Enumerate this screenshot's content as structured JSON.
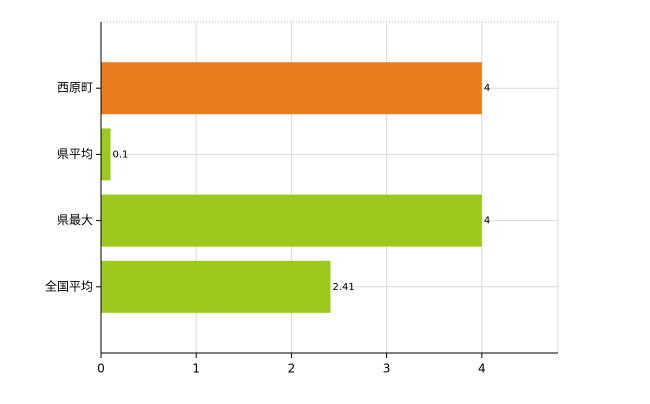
{
  "chart_data": {
    "type": "barh",
    "categories": [
      "西原町",
      "県平均",
      "県最大",
      "全国平均"
    ],
    "values": [
      4,
      0.1,
      4,
      2.41
    ],
    "colors": [
      "#e87c1e",
      "#9dc91e",
      "#9dc91e",
      "#9dc91e"
    ],
    "xlim": [
      0,
      4.8
    ],
    "xticks": [
      0,
      1,
      2,
      3,
      4
    ],
    "grid": true
  }
}
